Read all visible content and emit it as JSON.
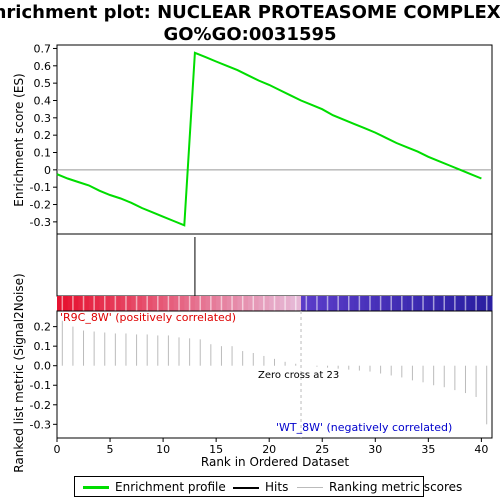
{
  "chart_data": {
    "type": "line",
    "title_line1": "Enrichment plot: NUCLEAR PROTEASOME COMPLEX%",
    "title_line2": "GO%GO:0031595",
    "xlabel": "Rank in Ordered Dataset",
    "ylabel_top": "Enrichment score (ES)",
    "ylabel_bottom": "Ranked list metric (Signal2Noise)",
    "xlim": [
      0,
      41
    ],
    "x_ticks": [
      0,
      5,
      10,
      15,
      20,
      25,
      30,
      35,
      40
    ],
    "es_ylim": [
      -0.37,
      0.72
    ],
    "es_ticks": [
      -0.3,
      -0.2,
      -0.1,
      0.0,
      0.1,
      0.2,
      0.3,
      0.4,
      0.5,
      0.6,
      0.7
    ],
    "es_tick_labels": [
      "-0.3",
      "-0.2",
      "-0.1",
      "0",
      "0.1",
      "0.2",
      "0.3",
      "0.4",
      "0.5",
      "0.6",
      "0.7"
    ],
    "es_profile": {
      "x": [
        0,
        1,
        2,
        3,
        4,
        5,
        6,
        7,
        8,
        9,
        10,
        11,
        12,
        13,
        14,
        15,
        16,
        17,
        18,
        19,
        20,
        21,
        22,
        23,
        24,
        25,
        26,
        27,
        28,
        29,
        30,
        31,
        32,
        33,
        34,
        35,
        36,
        37,
        38,
        39,
        40
      ],
      "y": [
        -0.025,
        -0.05,
        -0.07,
        -0.09,
        -0.12,
        -0.145,
        -0.165,
        -0.19,
        -0.22,
        -0.245,
        -0.27,
        -0.295,
        -0.32,
        0.675,
        0.65,
        0.625,
        0.6,
        0.575,
        0.545,
        0.515,
        0.49,
        0.46,
        0.43,
        0.4,
        0.375,
        0.35,
        0.315,
        0.29,
        0.265,
        0.24,
        0.215,
        0.185,
        0.155,
        0.13,
        0.105,
        0.075,
        0.05,
        0.025,
        0.0,
        -0.025,
        -0.05
      ],
      "name": "Enrichment profile",
      "color": "#00dd00"
    },
    "hits": [
      13
    ],
    "metric_ylim": [
      -0.37,
      0.28
    ],
    "metric_ticks": [
      -0.3,
      -0.2,
      -0.1,
      0.0,
      0.1,
      0.2
    ],
    "metric_tick_labels": [
      "-0.3",
      "-0.2",
      "-0.1",
      "0.0",
      "0.1",
      "0.2"
    ],
    "metric_values": [
      0.23,
      0.2,
      0.18,
      0.175,
      0.17,
      0.165,
      0.165,
      0.16,
      0.16,
      0.155,
      0.155,
      0.145,
      0.14,
      0.135,
      0.11,
      0.1,
      0.1,
      0.075,
      0.065,
      0.05,
      0.035,
      0.02,
      0.01,
      0.0,
      -0.005,
      -0.01,
      -0.015,
      -0.02,
      -0.025,
      -0.03,
      -0.04,
      -0.05,
      -0.06,
      -0.075,
      -0.085,
      -0.1,
      -0.11,
      -0.125,
      -0.14,
      -0.16,
      -0.3
    ],
    "zero_cross_label": "Zero cross at 23",
    "zero_cross_rank": 23,
    "pos_label": "'R9C_8W' (positively correlated)",
    "neg_label": "'WT_8W' (negatively correlated)",
    "colors": {
      "profile": "#00dd00",
      "pos_text": "#dd0000",
      "neg_text": "#0000cc",
      "zero_line": "#bbbbbb",
      "metric_line": "#bbbbbb"
    },
    "legend": [
      {
        "label": "Enrichment profile",
        "color": "#00dd00"
      },
      {
        "label": "Hits",
        "color": "#000000"
      },
      {
        "label": "Ranking metric scores",
        "color": "#bbbbbb"
      }
    ]
  }
}
